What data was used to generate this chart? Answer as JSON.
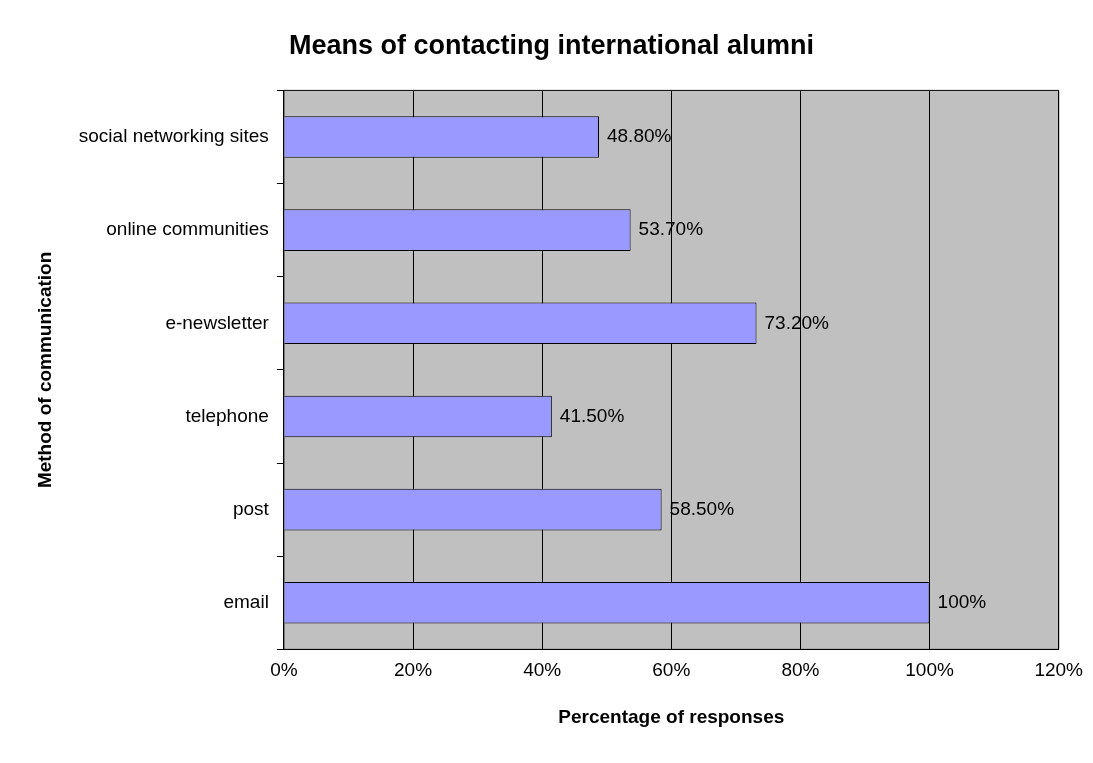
{
  "chart_data": {
    "type": "bar",
    "orientation": "horizontal",
    "title": "Means of contacting international alumni",
    "xlabel": "Percentage of responses",
    "ylabel": "Method of communication",
    "categories": [
      "social networking sites",
      "online communities",
      "e-newsletter",
      "telephone",
      "post",
      "email"
    ],
    "values": [
      48.8,
      53.7,
      73.2,
      41.5,
      58.5,
      100
    ],
    "value_labels": [
      "48.80%",
      "53.70%",
      "73.20%",
      "41.50%",
      "58.50%",
      "100%"
    ],
    "color": "#9999ff",
    "xlim": [
      0,
      120
    ],
    "xticks": [
      {
        "value": 0,
        "label": "0%"
      },
      {
        "value": 20,
        "label": "20%"
      },
      {
        "value": 40,
        "label": "40%"
      },
      {
        "value": 60,
        "label": "60%"
      },
      {
        "value": 80,
        "label": "80%"
      },
      {
        "value": 100,
        "label": "100%"
      },
      {
        "value": 120,
        "label": "120%"
      }
    ],
    "grid": "x",
    "legend": false
  }
}
